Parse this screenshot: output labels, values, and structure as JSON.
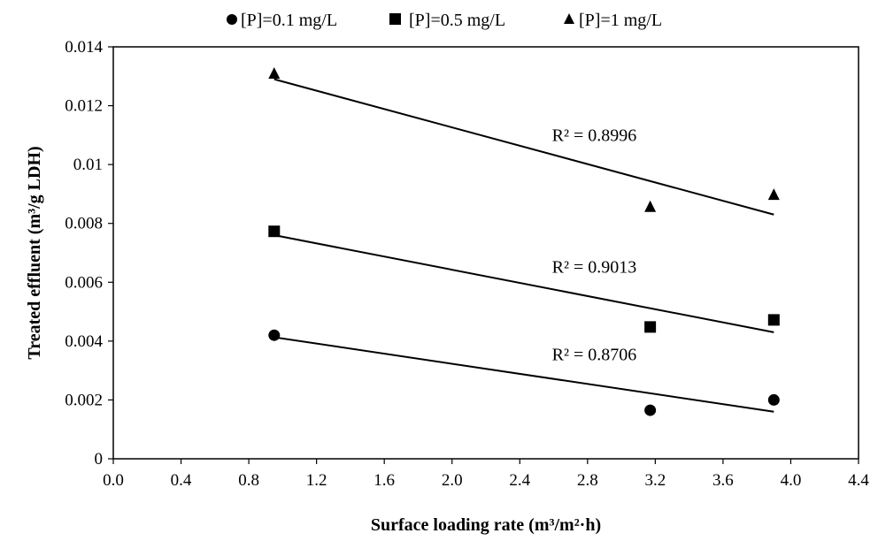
{
  "chart_data": {
    "type": "scatter",
    "xlabel": "Surface loading rate (m³/m²·h)",
    "ylabel": "Treated effluent (m³/g LDH)",
    "xlim": [
      0,
      4.4
    ],
    "ylim": [
      0,
      0.014
    ],
    "x_ticks": [
      "0.0",
      "0.4",
      "0.8",
      "1.2",
      "1.6",
      "2.0",
      "2.4",
      "2.8",
      "3.2",
      "3.6",
      "4.0",
      "4.4"
    ],
    "y_ticks": [
      "0",
      "0.002",
      "0.004",
      "0.006",
      "0.008",
      "0.01",
      "0.012",
      "0.014"
    ],
    "grid": false,
    "legend_position": "top",
    "series": [
      {
        "name": "[P]=0.1 mg/L",
        "marker": "circle",
        "x": [
          0.95,
          3.17,
          3.9
        ],
        "y": [
          0.0042,
          0.00165,
          0.002
        ],
        "trendline": {
          "x": [
            0.95,
            3.9
          ],
          "y": [
            0.00413,
            0.0016
          ]
        },
        "r_squared_label": "R² = 0.8706"
      },
      {
        "name": "[P]=0.5 mg/L",
        "marker": "square",
        "x": [
          0.95,
          3.17,
          3.9
        ],
        "y": [
          0.00773,
          0.00448,
          0.00472
        ],
        "trendline": {
          "x": [
            0.95,
            3.9
          ],
          "y": [
            0.0076,
            0.0043
          ]
        },
        "r_squared_label": "R² = 0.9013"
      },
      {
        "name": "[P]=1 mg/L",
        "marker": "triangle",
        "x": [
          0.95,
          3.17,
          3.9
        ],
        "y": [
          0.0131,
          0.00857,
          0.00898
        ],
        "trendline": {
          "x": [
            0.95,
            3.9
          ],
          "y": [
            0.0129,
            0.0083
          ]
        },
        "r_squared_label": "R² = 0.8996"
      }
    ]
  },
  "colors": {
    "ink": "#000000",
    "background": "#ffffff"
  }
}
